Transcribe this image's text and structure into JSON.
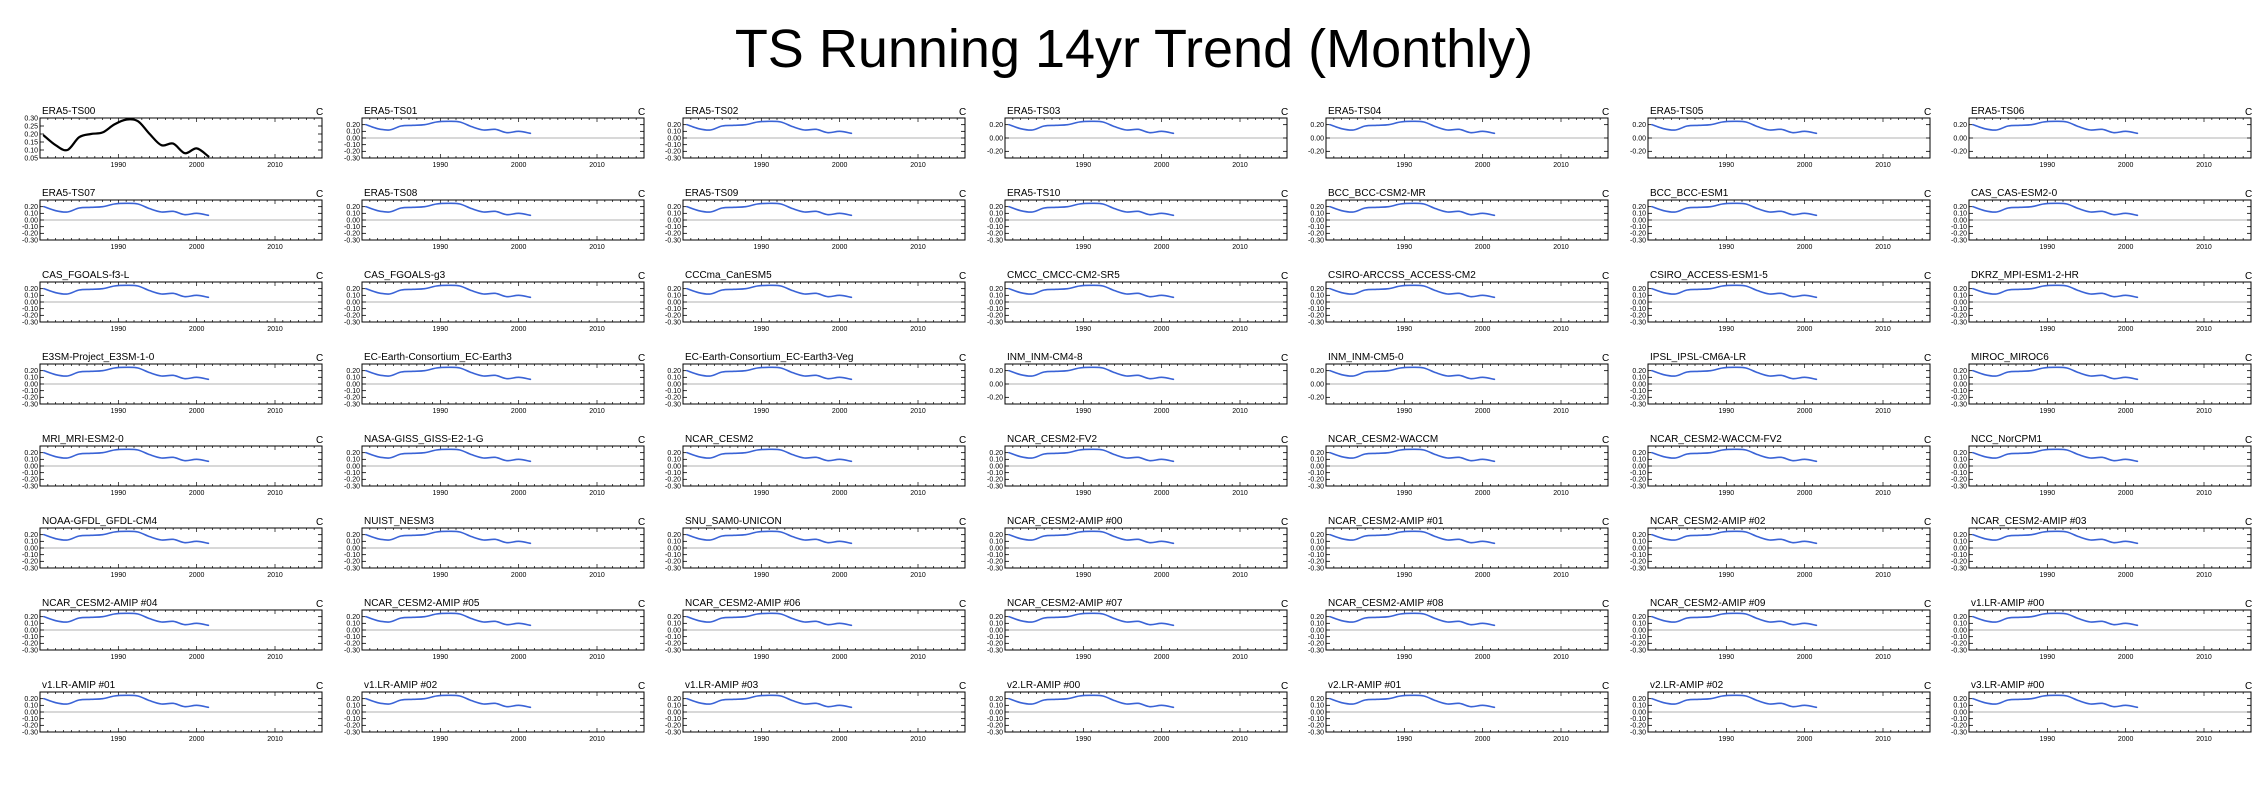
{
  "page": {
    "title": "TS Running 14yr Trend (Monthly)"
  },
  "colors": {
    "reference": "#000000",
    "model": "#3a63d6",
    "zero_line": "#999999",
    "axis": "#000000"
  },
  "chart_data": {
    "type": "line",
    "title": "TS Running 14yr Trend (Monthly)",
    "xlim": [
      1980,
      2016
    ],
    "x_ticks": [
      1990,
      2000,
      2010
    ],
    "units": "C",
    "panels": [
      {
        "name": "ERA5-TS00",
        "style": "reference",
        "ylim": [
          0.05,
          0.3
        ],
        "y_ticks": [
          0.3,
          0.25,
          0.2,
          0.15,
          0.1,
          0.05
        ],
        "decimals": 2,
        "x": [
          1980.5,
          1982,
          1983.5,
          1985,
          1986.5,
          1988,
          1989.5,
          1991,
          1992.5,
          1994,
          1995.5,
          1997,
          1998.5,
          2000,
          2001.5
        ],
        "y": [
          0.19,
          0.13,
          0.1,
          0.18,
          0.2,
          0.21,
          0.26,
          0.29,
          0.28,
          0.2,
          0.13,
          0.14,
          0.08,
          0.11,
          0.06
        ]
      },
      {
        "name": "ERA5-TS01",
        "style": "model"
      },
      {
        "name": "ERA5-TS02",
        "style": "model"
      },
      {
        "name": "ERA5-TS03",
        "style": "model",
        "ylim": [
          -0.3,
          0.3
        ],
        "y_ticks": [
          0.2,
          0.0,
          -0.2
        ]
      },
      {
        "name": "ERA5-TS04",
        "style": "model",
        "ylim": [
          -0.3,
          0.3
        ],
        "y_ticks": [
          0.2,
          0.0,
          -0.2
        ]
      },
      {
        "name": "ERA5-TS05",
        "style": "model",
        "ylim": [
          -0.3,
          0.3
        ],
        "y_ticks": [
          0.2,
          0.0,
          -0.2
        ]
      },
      {
        "name": "ERA5-TS06",
        "style": "model",
        "ylim": [
          -0.3,
          0.3
        ],
        "y_ticks": [
          0.2,
          0.0,
          -0.2
        ]
      },
      {
        "name": "ERA5-TS07",
        "style": "model"
      },
      {
        "name": "ERA5-TS08",
        "style": "model"
      },
      {
        "name": "ERA5-TS09",
        "style": "model"
      },
      {
        "name": "ERA5-TS10",
        "style": "model"
      },
      {
        "name": "BCC_BCC-CSM2-MR",
        "style": "model"
      },
      {
        "name": "BCC_BCC-ESM1",
        "style": "model"
      },
      {
        "name": "CAS_CAS-ESM2-0",
        "style": "model"
      },
      {
        "name": "CAS_FGOALS-f3-L",
        "style": "model"
      },
      {
        "name": "CAS_FGOALS-g3",
        "style": "model"
      },
      {
        "name": "CCCma_CanESM5",
        "style": "model"
      },
      {
        "name": "CMCC_CMCC-CM2-SR5",
        "style": "model"
      },
      {
        "name": "CSIRO-ARCCSS_ACCESS-CM2",
        "style": "model"
      },
      {
        "name": "CSIRO_ACCESS-ESM1-5",
        "style": "model"
      },
      {
        "name": "DKRZ_MPI-ESM1-2-HR",
        "style": "model"
      },
      {
        "name": "E3SM-Project_E3SM-1-0",
        "style": "model"
      },
      {
        "name": "EC-Earth-Consortium_EC-Earth3",
        "style": "model"
      },
      {
        "name": "EC-Earth-Consortium_EC-Earth3-Veg",
        "style": "model"
      },
      {
        "name": "INM_INM-CM4-8",
        "style": "model",
        "ylim": [
          -0.3,
          0.3
        ],
        "y_ticks": [
          0.2,
          0.0,
          -0.2
        ]
      },
      {
        "name": "INM_INM-CM5-0",
        "style": "model",
        "ylim": [
          -0.3,
          0.3
        ],
        "y_ticks": [
          0.2,
          0.0,
          -0.2
        ]
      },
      {
        "name": "IPSL_IPSL-CM6A-LR",
        "style": "model"
      },
      {
        "name": "MIROC_MIROC6",
        "style": "model"
      },
      {
        "name": "MRI_MRI-ESM2-0",
        "style": "model"
      },
      {
        "name": "NASA-GISS_GISS-E2-1-G",
        "style": "model"
      },
      {
        "name": "NCAR_CESM2",
        "style": "model"
      },
      {
        "name": "NCAR_CESM2-FV2",
        "style": "model"
      },
      {
        "name": "NCAR_CESM2-WACCM",
        "style": "model"
      },
      {
        "name": "NCAR_CESM2-WACCM-FV2",
        "style": "model"
      },
      {
        "name": "NCC_NorCPM1",
        "style": "model"
      },
      {
        "name": "NOAA-GFDL_GFDL-CM4",
        "style": "model"
      },
      {
        "name": "NUIST_NESM3",
        "style": "model"
      },
      {
        "name": "SNU_SAM0-UNICON",
        "style": "model"
      },
      {
        "name": "NCAR_CESM2-AMIP  #00",
        "style": "model"
      },
      {
        "name": "NCAR_CESM2-AMIP  #01",
        "style": "model"
      },
      {
        "name": "NCAR_CESM2-AMIP  #02",
        "style": "model"
      },
      {
        "name": "NCAR_CESM2-AMIP  #03",
        "style": "model"
      },
      {
        "name": "NCAR_CESM2-AMIP  #04",
        "style": "model"
      },
      {
        "name": "NCAR_CESM2-AMIP  #05",
        "style": "model"
      },
      {
        "name": "NCAR_CESM2-AMIP  #06",
        "style": "model"
      },
      {
        "name": "NCAR_CESM2-AMIP  #07",
        "style": "model"
      },
      {
        "name": "NCAR_CESM2-AMIP  #08",
        "style": "model"
      },
      {
        "name": "NCAR_CESM2-AMIP  #09",
        "style": "model"
      },
      {
        "name": "v1.LR-AMIP  #00",
        "style": "model"
      },
      {
        "name": "v1.LR-AMIP  #01",
        "style": "model"
      },
      {
        "name": "v1.LR-AMIP  #02",
        "style": "model"
      },
      {
        "name": "v1.LR-AMIP  #03",
        "style": "model"
      },
      {
        "name": "v2.LR-AMIP  #00",
        "style": "model"
      },
      {
        "name": "v2.LR-AMIP  #01",
        "style": "model"
      },
      {
        "name": "v2.LR-AMIP  #02",
        "style": "model"
      },
      {
        "name": "v3.LR-AMIP  #00",
        "style": "model"
      }
    ],
    "model_defaults": {
      "ylim": [
        -0.3,
        0.3
      ],
      "y_ticks": [
        0.2,
        0.1,
        0.0,
        -0.1,
        -0.2,
        -0.3
      ],
      "x": [
        1980.5,
        1982,
        1983.5,
        1985,
        1986.5,
        1988,
        1989.5,
        1991,
        1992.5,
        1994,
        1995.5,
        1997,
        1998.5,
        2000,
        2001.5
      ],
      "y": [
        0.2,
        0.14,
        0.12,
        0.18,
        0.19,
        0.2,
        0.24,
        0.25,
        0.24,
        0.17,
        0.12,
        0.13,
        0.08,
        0.1,
        0.07
      ]
    }
  }
}
